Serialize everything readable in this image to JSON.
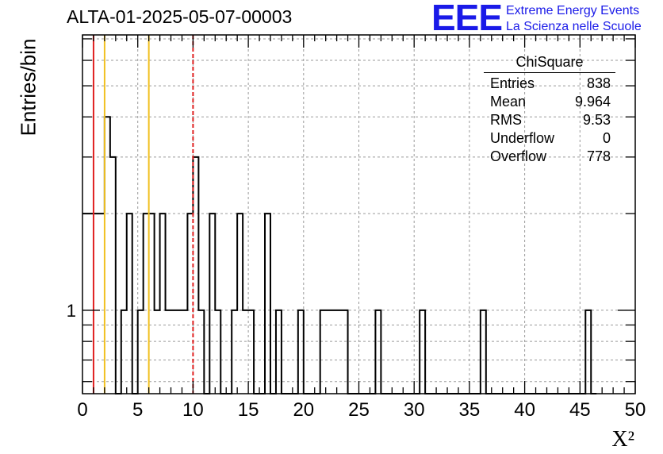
{
  "title": "ALTA-01-2025-05-07-00003",
  "logo": {
    "mark": "EEE",
    "line1": "Extreme Energy Events",
    "line2": "La Scienza nelle Scuole",
    "color": "#1a1ae8"
  },
  "stats": {
    "name": "ChiSquare",
    "rows": [
      {
        "label": "Entries",
        "value": "838"
      },
      {
        "label": "Mean",
        "value": "9.964"
      },
      {
        "label": "RMS",
        "value": "9.53"
      },
      {
        "label": "Underflow",
        "value": "0"
      },
      {
        "label": "Overflow",
        "value": "778"
      }
    ]
  },
  "chart_data": {
    "type": "histogram",
    "title": "ALTA-01-2025-05-07-00003",
    "xlabel": "X²",
    "ylabel": "Entries/bin",
    "xlim": [
      0,
      50
    ],
    "ylim": [
      0.55,
      7.2
    ],
    "yscale": "log",
    "grid": true,
    "bin_width": 0.5,
    "xticks": [
      0,
      5,
      10,
      15,
      20,
      25,
      30,
      35,
      40,
      45,
      50
    ],
    "yticks_labeled": [
      1
    ],
    "legend": "top-right",
    "bins": [
      [
        0.0,
        2
      ],
      [
        0.5,
        2
      ],
      [
        1.0,
        2
      ],
      [
        1.5,
        2
      ],
      [
        2.0,
        4
      ],
      [
        2.5,
        3
      ],
      [
        3.0,
        0
      ],
      [
        3.5,
        1
      ],
      [
        4.0,
        2
      ],
      [
        4.5,
        0
      ],
      [
        5.0,
        1
      ],
      [
        5.5,
        2
      ],
      [
        6.0,
        2
      ],
      [
        6.5,
        1
      ],
      [
        7.0,
        2
      ],
      [
        7.5,
        1
      ],
      [
        8.0,
        1
      ],
      [
        8.5,
        1
      ],
      [
        9.0,
        1
      ],
      [
        9.5,
        2
      ],
      [
        10.0,
        3
      ],
      [
        10.5,
        1
      ],
      [
        11.0,
        0
      ],
      [
        11.5,
        2
      ],
      [
        12.0,
        1
      ],
      [
        12.5,
        0
      ],
      [
        13.0,
        0
      ],
      [
        13.5,
        1
      ],
      [
        14.0,
        2
      ],
      [
        14.5,
        1
      ],
      [
        15.0,
        1
      ],
      [
        15.5,
        0
      ],
      [
        16.0,
        0
      ],
      [
        16.5,
        2
      ],
      [
        17.0,
        0
      ],
      [
        17.5,
        1
      ],
      [
        18.0,
        0
      ],
      [
        18.5,
        0
      ],
      [
        19.0,
        0
      ],
      [
        19.5,
        1
      ],
      [
        20.0,
        0
      ],
      [
        20.5,
        0
      ],
      [
        21.0,
        0
      ],
      [
        21.5,
        1
      ],
      [
        22.0,
        1
      ],
      [
        22.5,
        1
      ],
      [
        23.0,
        1
      ],
      [
        23.5,
        1
      ],
      [
        24.0,
        0
      ],
      [
        24.5,
        0
      ],
      [
        25.0,
        0
      ],
      [
        25.5,
        0
      ],
      [
        26.0,
        0
      ],
      [
        26.5,
        1
      ],
      [
        27.0,
        0
      ],
      [
        27.5,
        0
      ],
      [
        28.0,
        0
      ],
      [
        28.5,
        0
      ],
      [
        29.0,
        0
      ],
      [
        29.5,
        0
      ],
      [
        30.0,
        0
      ],
      [
        30.5,
        1
      ],
      [
        31.0,
        0
      ],
      [
        31.5,
        0
      ],
      [
        32.0,
        0
      ],
      [
        32.5,
        0
      ],
      [
        33.0,
        0
      ],
      [
        33.5,
        0
      ],
      [
        34.0,
        0
      ],
      [
        34.5,
        0
      ],
      [
        35.0,
        0
      ],
      [
        35.5,
        0
      ],
      [
        36.0,
        1
      ],
      [
        36.5,
        0
      ],
      [
        37.0,
        0
      ],
      [
        37.5,
        0
      ],
      [
        38.0,
        0
      ],
      [
        38.5,
        0
      ],
      [
        39.0,
        0
      ],
      [
        39.5,
        0
      ],
      [
        40.0,
        0
      ],
      [
        40.5,
        0
      ],
      [
        41.0,
        0
      ],
      [
        41.5,
        0
      ],
      [
        42.0,
        0
      ],
      [
        42.5,
        0
      ],
      [
        43.0,
        0
      ],
      [
        43.5,
        0
      ],
      [
        44.0,
        0
      ],
      [
        44.5,
        0
      ],
      [
        45.0,
        0
      ],
      [
        45.5,
        1
      ],
      [
        46.0,
        0
      ]
    ],
    "vertical_lines": [
      {
        "x": 1,
        "color": "#e02020",
        "style": "solid"
      },
      {
        "x": 2,
        "color": "#f0c020",
        "style": "solid"
      },
      {
        "x": 6,
        "color": "#f0c020",
        "style": "solid"
      },
      {
        "x": 10,
        "color": "#e02020",
        "style": "dashed"
      }
    ]
  }
}
